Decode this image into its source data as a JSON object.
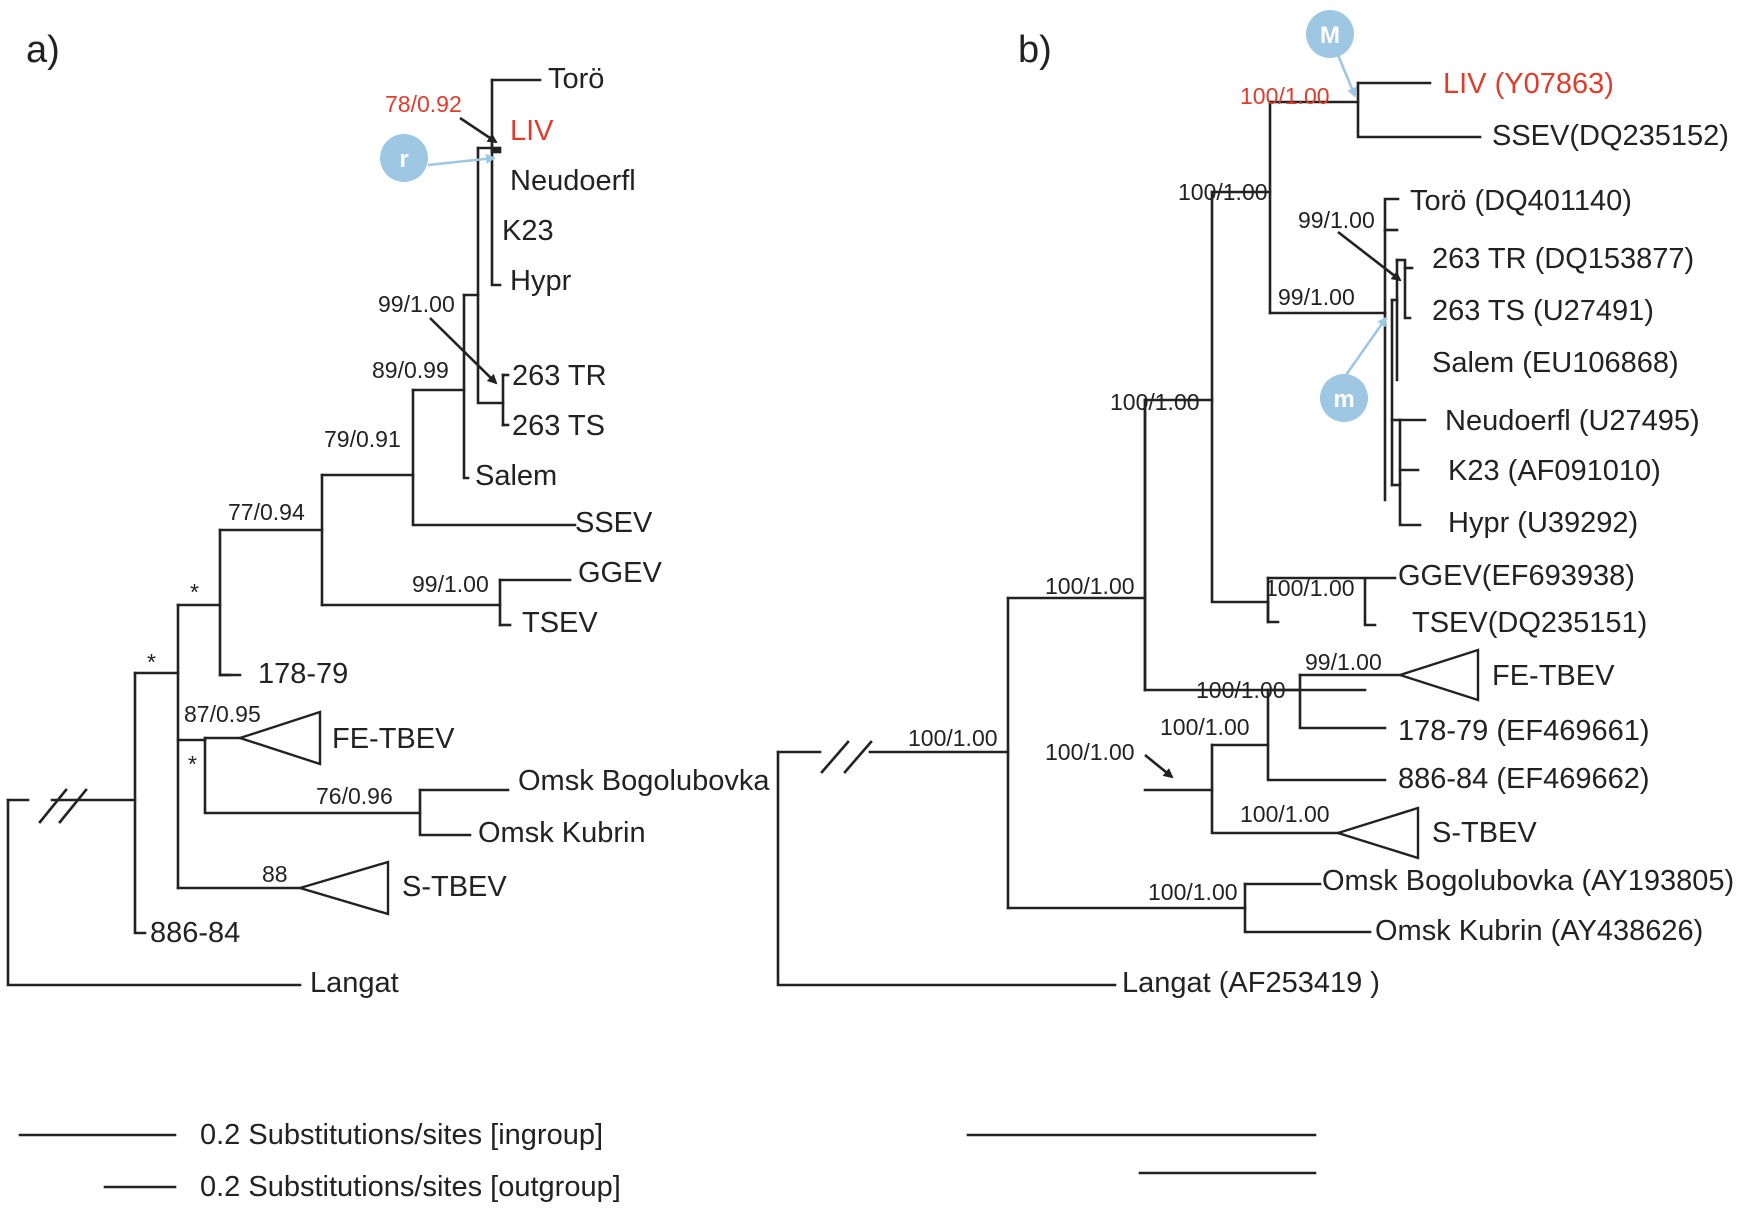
{
  "panel_a": {
    "label": "a)",
    "taxa": {
      "toro": "Torö",
      "liv": "LIV",
      "neudoerfl": "Neudoerfl",
      "k23": "K23",
      "hypr": "Hypr",
      "tr263": "263 TR",
      "ts263": "263 TS",
      "salem": "Salem",
      "ssev": "SSEV",
      "ggev": "GGEV",
      "tsev": "TSEV",
      "t17879": "178-79",
      "fetbev": "FE-TBEV",
      "omsk_bogolubovka": "Omsk Bogolubovka",
      "omsk_kubrin": "Omsk Kubrin",
      "stbev": "S-TBEV",
      "t88684": "886-84",
      "langat": "Langat"
    },
    "support": {
      "liv_node": "78/0.92",
      "tr_node": "99/1.00",
      "n8999": "89/0.99",
      "n7991": "79/0.91",
      "n7794": "77/0.94",
      "ggev_node": "99/1.00",
      "star1": "*",
      "star2": "*",
      "star3": "*",
      "fe_node": "87/0.95",
      "omsk_node": "76/0.96",
      "s_node": "88"
    },
    "marker": "r"
  },
  "panel_b": {
    "label": "b)",
    "taxa": {
      "liv": "LIV (Y07863)",
      "ssev": "SSEV(DQ235152)",
      "toro": "Torö (DQ401140)",
      "tr263": "263 TR (DQ153877)",
      "ts263": "263 TS (U27491)",
      "salem": "Salem (EU106868)",
      "neudoerfl": "Neudoerfl (U27495)",
      "k23": "K23 (AF091010)",
      "hypr": "Hypr (U39292)",
      "ggev": "GGEV(EF693938)",
      "tsev": "TSEV(DQ235151)",
      "fetbev": "FE-TBEV",
      "t17879": "178-79 (EF469661)",
      "t88684": "886-84 (EF469662)",
      "stbev": "S-TBEV",
      "omsk_bogolubovka": "Omsk Bogolubovka (AY193805)",
      "omsk_kubrin": "Omsk Kubrin (AY438626)",
      "langat": "Langat (AF253419 )"
    },
    "support": {
      "liv_node": "100/1.00",
      "n1": "100/1.00",
      "toro_node": "99/1.00",
      "n99": "99/1.00",
      "n2": "100/1.00",
      "ggev_node": "100/1.00",
      "n3": "100/1.00",
      "fe_node": "99/1.00",
      "n4": "100/1.00",
      "n5": "100/1.00",
      "n6": "100/1.00",
      "s_node": "100/1.00",
      "omsk_node": "100/1.00",
      "root": "100/1.00"
    },
    "marker_major": "M",
    "marker_minor": "m"
  },
  "scale": {
    "ingroup": "0.2 Substitutions/sites [ingroup]",
    "outgroup": "0.2 Substitutions/sites [outgroup]"
  }
}
